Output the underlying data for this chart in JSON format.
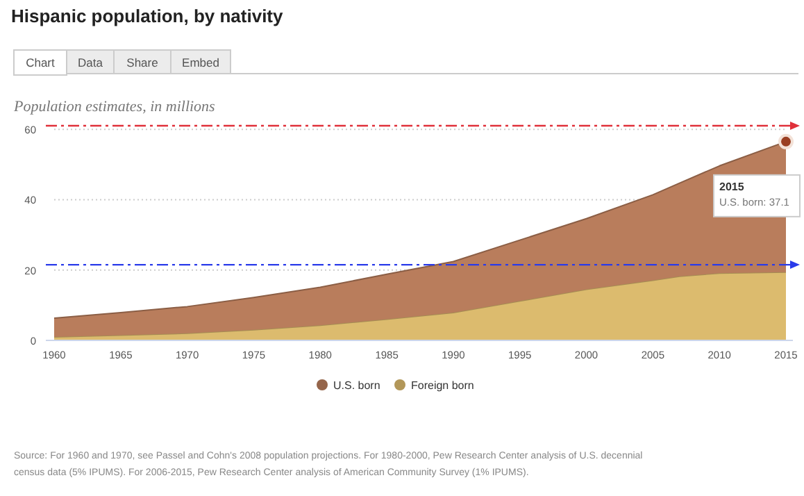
{
  "chart_data": {
    "type": "area",
    "stacked": true,
    "title": "Hispanic population, by nativity",
    "ylabel": "Population estimates, in millions",
    "x": [
      1960,
      1965,
      1970,
      1975,
      1980,
      1985,
      1990,
      1995,
      2000,
      2005,
      2007,
      2010,
      2015
    ],
    "series": [
      {
        "name": "Foreign born",
        "color": "#dcbb6e",
        "values": [
          1.0,
          1.5,
          2.0,
          3.0,
          4.3,
          6.0,
          7.9,
          11.2,
          14.5,
          17.1,
          18.2,
          19.1,
          19.4
        ]
      },
      {
        "name": "U.S. born",
        "color": "#b97d5c",
        "values": [
          5.3,
          6.4,
          7.6,
          9.2,
          10.8,
          12.8,
          14.5,
          17.3,
          20.1,
          24.3,
          26.5,
          30.5,
          37.1
        ]
      }
    ],
    "xlim": [
      1960,
      2015
    ],
    "xticks": [
      1960,
      1965,
      1970,
      1975,
      1980,
      1985,
      1990,
      1995,
      2000,
      2005,
      2010,
      2015
    ],
    "ylim": [
      0,
      62
    ],
    "yticks": [
      0,
      20,
      40,
      60
    ],
    "grid": "y",
    "legend": "bottom",
    "ref_lines": [
      {
        "axis": "y",
        "value": 21.5,
        "color": "#2a3bea",
        "line_style": "dashed"
      },
      {
        "axis": "y",
        "value": 61,
        "color": "#e0303a",
        "line_style": "dashed"
      }
    ],
    "annotations": [
      "Chart",
      "Data",
      "Share",
      "Embed",
      "Source: For 1960 and 1970, see Passel and Cohn's 2008 population projections. For 1980-2000, Pew Research Center analysis of U.S. decennial census data (5% IPUMS). For 2006-2015, Pew Research Center analysis of American Community Survey (1% IPUMS).",
      "2015",
      "U.S. born: 37.1"
    ]
  }
}
